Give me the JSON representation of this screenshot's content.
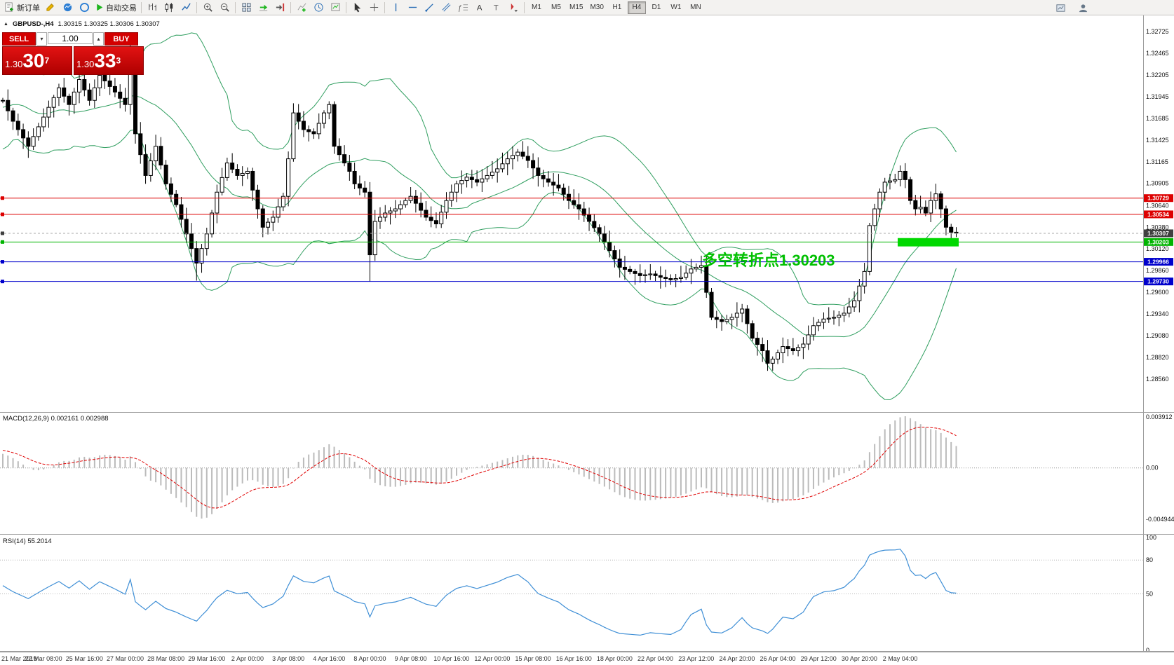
{
  "toolbar": {
    "new_order_label": "新订单",
    "autotrading_label": "自动交易",
    "timeframes": [
      "M1",
      "M5",
      "M15",
      "M30",
      "H1",
      "H4",
      "D1",
      "W1",
      "MN"
    ],
    "active_timeframe": "H4"
  },
  "chart": {
    "symbol_header": "GBPUSD-,H4",
    "ohlc": "1.30315 1.30325 1.30306 1.30307",
    "annotation": "多空转折点1.30203",
    "trade_panel": {
      "sell_label": "SELL",
      "buy_label": "BUY",
      "volume": "1.00",
      "sell_price_prefix": "1.30",
      "sell_price_big": "30",
      "sell_price_sup": "7",
      "buy_price_prefix": "1.30",
      "buy_price_big": "33",
      "buy_price_sup": "3"
    }
  },
  "colors": {
    "bollinger": "#2f9e5f",
    "candle": "#000000",
    "candle_up_fill": "#ffffff",
    "candle_down_fill": "#000000",
    "macd_hist": "#bbbbbb",
    "macd_signal": "#e00000",
    "rsi_line": "#3f8fd6",
    "highlight": "#00d800",
    "separator": "#9e9e9e",
    "current_line": "#aaaaaa"
  },
  "price_axis": {
    "labels": [
      "1.32725",
      "1.32465",
      "1.32205",
      "1.31945",
      "1.31685",
      "1.31425",
      "1.31165",
      "1.30905",
      "1.30640",
      "1.30380",
      "1.30120",
      "1.29860",
      "1.29600",
      "1.29340",
      "1.29080",
      "1.28820",
      "1.28560"
    ]
  },
  "hlines": [
    {
      "label": "1.30729",
      "price": 1.30729,
      "color": "#dd0000",
      "style": "solid"
    },
    {
      "label": "1.30534",
      "price": 1.30534,
      "color": "#dd0000",
      "style": "solid"
    },
    {
      "label": "1.30307",
      "price": 1.30307,
      "color": "#aaaaaa",
      "style": "dash",
      "tag_color": "#3f3f3f"
    },
    {
      "label": "1.30203",
      "price": 1.30203,
      "color": "#00b400",
      "style": "solid"
    },
    {
      "label": "1.29966",
      "price": 1.29966,
      "color": "#0000cc",
      "style": "solid"
    },
    {
      "label": "1.29730",
      "price": 1.2973,
      "color": "#0000cc",
      "style": "solid"
    }
  ],
  "macd": {
    "label": "MACD(12,26,9)",
    "values": "0.002161 0.002988",
    "scale": [
      "0.003912",
      "0.00",
      "-0.004944"
    ]
  },
  "rsi": {
    "label": "RSI(14)",
    "value": "55.2014",
    "scale": [
      "100",
      "80",
      "50",
      "0"
    ]
  },
  "time_axis": [
    "21 Mar 2019",
    "22 Mar 08:00",
    "25 Mar 16:00",
    "27 Mar 00:00",
    "28 Mar 08:00",
    "29 Mar 16:00",
    "2 Apr 00:00",
    "3 Apr 08:00",
    "4 Apr 16:00",
    "8 Apr 00:00",
    "9 Apr 08:00",
    "10 Apr 16:00",
    "12 Apr 00:00",
    "15 Apr 08:00",
    "16 Apr 16:00",
    "18 Apr 00:00",
    "22 Apr 04:00",
    "23 Apr 12:00",
    "24 Apr 20:00",
    "26 Apr 04:00",
    "29 Apr 12:00",
    "30 Apr 20:00",
    "2 May 04:00"
  ],
  "chart_data": {
    "type": "candlestick",
    "symbol": "GBPUSD",
    "timeframe": "H4",
    "bars": 188,
    "bars_per_time_label": 8,
    "price_top": 1.32725,
    "price_bottom": 1.2856,
    "indicators": [
      "Bollinger Bands(20,2)",
      "MACD(12,26,9)",
      "RSI(14)"
    ],
    "warmup_keypoints": [
      [
        -26,
        1.31
      ],
      [
        -22,
        1.321
      ],
      [
        -18,
        1.313
      ],
      [
        -14,
        1.322
      ],
      [
        -10,
        1.315
      ],
      [
        -6,
        1.323
      ],
      [
        -3,
        1.316
      ],
      [
        -1,
        1.319
      ]
    ],
    "keypoints": [
      [
        0,
        1.319
      ],
      [
        2,
        1.3165
      ],
      [
        5,
        1.3135
      ],
      [
        8,
        1.317
      ],
      [
        11,
        1.3205
      ],
      [
        13,
        1.3185
      ],
      [
        15,
        1.3215
      ],
      [
        17,
        1.319
      ],
      [
        19,
        1.322
      ],
      [
        22,
        1.32
      ],
      [
        24,
        1.3185
      ],
      [
        25,
        1.324
      ],
      [
        26,
        1.315
      ],
      [
        28,
        1.31
      ],
      [
        30,
        1.3135
      ],
      [
        32,
        1.309
      ],
      [
        34,
        1.3065
      ],
      [
        36,
        1.303
      ],
      [
        38,
        1.2995
      ],
      [
        40,
        1.303
      ],
      [
        42,
        1.308
      ],
      [
        44,
        1.3115
      ],
      [
        46,
        1.31
      ],
      [
        48,
        1.3105
      ],
      [
        50,
        1.306
      ],
      [
        51,
        1.3038
      ],
      [
        53,
        1.305
      ],
      [
        55,
        1.3075
      ],
      [
        56,
        1.312
      ],
      [
        57,
        1.3175
      ],
      [
        59,
        1.3155
      ],
      [
        61,
        1.315
      ],
      [
        63,
        1.3175
      ],
      [
        64,
        1.3185
      ],
      [
        65,
        1.3135
      ],
      [
        66,
        1.3125
      ],
      [
        68,
        1.3105
      ],
      [
        69,
        1.309
      ],
      [
        71,
        1.308
      ],
      [
        72,
        1.3005
      ],
      [
        73,
        1.3045
      ],
      [
        75,
        1.3055
      ],
      [
        77,
        1.306
      ],
      [
        80,
        1.3075
      ],
      [
        83,
        1.305
      ],
      [
        85,
        1.3042
      ],
      [
        87,
        1.307
      ],
      [
        89,
        1.309
      ],
      [
        91,
        1.3098
      ],
      [
        93,
        1.3092
      ],
      [
        95,
        1.31
      ],
      [
        97,
        1.3108
      ],
      [
        99,
        1.312
      ],
      [
        101,
        1.3128
      ],
      [
        103,
        1.3118
      ],
      [
        105,
        1.31
      ],
      [
        107,
        1.3092
      ],
      [
        109,
        1.3085
      ],
      [
        111,
        1.307
      ],
      [
        113,
        1.306
      ],
      [
        115,
        1.3045
      ],
      [
        117,
        1.303
      ],
      [
        119,
        1.301
      ],
      [
        121,
        1.299
      ],
      [
        123,
        1.2985
      ],
      [
        125,
        1.298
      ],
      [
        127,
        1.2982
      ],
      [
        129,
        1.2978
      ],
      [
        131,
        1.2975
      ],
      [
        133,
        1.2978
      ],
      [
        135,
        1.2988
      ],
      [
        137,
        1.2992
      ],
      [
        138,
        1.296
      ],
      [
        139,
        1.293
      ],
      [
        141,
        1.2925
      ],
      [
        143,
        1.293
      ],
      [
        145,
        1.294
      ],
      [
        147,
        1.2905
      ],
      [
        149,
        1.289
      ],
      [
        150,
        1.2875
      ],
      [
        151,
        1.288
      ],
      [
        153,
        1.2895
      ],
      [
        155,
        1.289
      ],
      [
        157,
        1.2898
      ],
      [
        159,
        1.292
      ],
      [
        161,
        1.2928
      ],
      [
        163,
        1.293
      ],
      [
        165,
        1.2935
      ],
      [
        167,
        1.295
      ],
      [
        169,
        1.2985
      ],
      [
        170,
        1.304
      ],
      [
        171,
        1.306
      ],
      [
        172,
        1.308
      ],
      [
        173,
        1.3092
      ],
      [
        175,
        1.3095
      ],
      [
        176,
        1.3105
      ],
      [
        177,
        1.3095
      ],
      [
        178,
        1.307
      ],
      [
        179,
        1.306
      ],
      [
        180,
        1.3062
      ],
      [
        181,
        1.3055
      ],
      [
        182,
        1.307
      ],
      [
        183,
        1.3078
      ],
      [
        184,
        1.306
      ],
      [
        185,
        1.3038
      ],
      [
        186,
        1.3032
      ],
      [
        187,
        1.3031
      ]
    ],
    "wick_overrides": {
      "25": {
        "high": 1.3257
      },
      "38": {
        "low": 1.2974
      },
      "72": {
        "low": 1.2973
      },
      "150": {
        "low": 1.2866
      },
      "176": {
        "high": 1.3112
      }
    },
    "highlight_zone": {
      "bar_start": 176,
      "bar_end": 187,
      "price_top": 1.3025,
      "price_bottom": 1.3015
    }
  }
}
